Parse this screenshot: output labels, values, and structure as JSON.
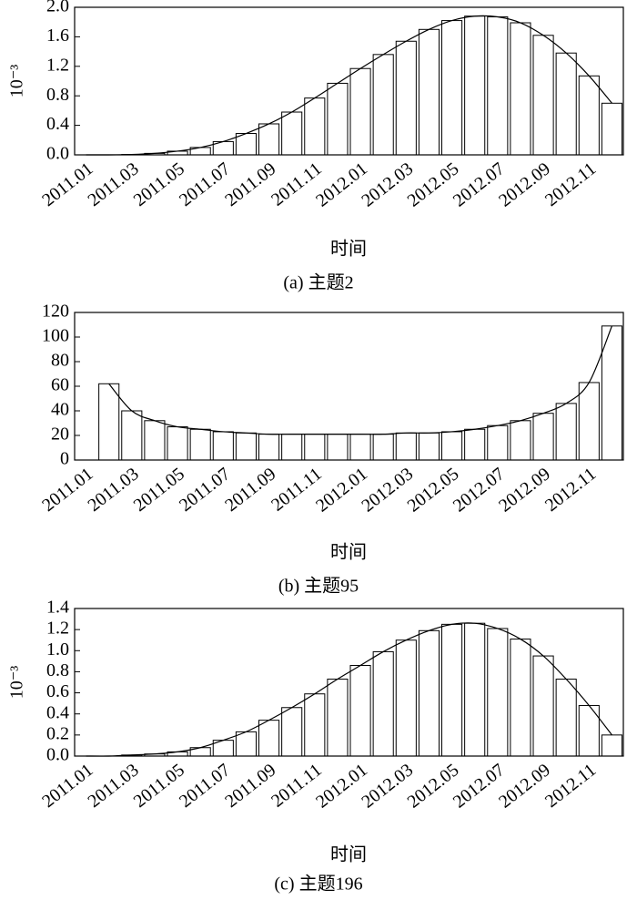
{
  "chart_data": [
    {
      "type": "bar",
      "ylabel": "10⁻³",
      "xlabel": "时间",
      "caption": "(a) 主题2",
      "categories": [
        "2011.01",
        null,
        "2011.03",
        null,
        "2011.05",
        null,
        "2011.07",
        null,
        "2011.09",
        null,
        "2011.11",
        null,
        "2012.01",
        null,
        "2012.03",
        null,
        "2012.05",
        null,
        "2012.07",
        null,
        "2012.09",
        null,
        "2012.11",
        null
      ],
      "values": [
        0,
        0,
        0.005,
        0.02,
        0.05,
        0.1,
        0.18,
        0.29,
        0.42,
        0.58,
        0.77,
        0.97,
        1.17,
        1.36,
        1.54,
        1.7,
        1.82,
        1.88,
        1.87,
        1.79,
        1.62,
        1.38,
        1.07,
        0.7
      ],
      "color": "#ffffff",
      "ylim": [
        0,
        2.0
      ],
      "yticks": [
        {
          "value": 0,
          "label": "0.0"
        },
        0.4,
        0.8,
        1.2,
        1.6,
        {
          "value": 2,
          "label": "2.0"
        }
      ],
      "grid": false
    },
    {
      "type": "bar",
      "xlabel": "时间",
      "caption": "(b) 主题95",
      "categories": [
        "2011.01",
        null,
        "2011.03",
        null,
        "2011.05",
        null,
        "2011.07",
        null,
        "2011.09",
        null,
        "2011.11",
        null,
        "2012.01",
        null,
        "2012.03",
        null,
        "2012.05",
        null,
        "2012.07",
        null,
        "2012.09",
        null,
        "2012.11",
        null
      ],
      "values": [
        null,
        62,
        40,
        32,
        27,
        25,
        23,
        22,
        21,
        21,
        21,
        21,
        21,
        21,
        22,
        22,
        23,
        25,
        28,
        32,
        38,
        46,
        63,
        109
      ],
      "color": "#ffffff",
      "ylim": [
        0,
        120
      ],
      "yticks": [
        0,
        20,
        40,
        60,
        80,
        100,
        120
      ],
      "grid": false
    },
    {
      "type": "bar",
      "ylabel": "10⁻³",
      "xlabel": "时间",
      "caption": "(c) 主题196",
      "categories": [
        "2011.01",
        null,
        "2011.03",
        null,
        "2011.05",
        null,
        "2011.07",
        null,
        "2011.09",
        null,
        "2011.11",
        null,
        "2012.01",
        null,
        "2012.03",
        null,
        "2012.05",
        null,
        "2012.07",
        null,
        "2012.09",
        null,
        "2012.11",
        null
      ],
      "values": [
        0,
        0,
        0.01,
        0.02,
        0.04,
        0.08,
        0.15,
        0.23,
        0.34,
        0.46,
        0.59,
        0.73,
        0.86,
        0.99,
        1.1,
        1.19,
        1.25,
        1.26,
        1.21,
        1.11,
        0.95,
        0.73,
        0.48,
        0.2
      ],
      "color": "#ffffff",
      "ylim": [
        0,
        1.4
      ],
      "yticks": [
        {
          "value": 0,
          "label": "0.0"
        },
        0.2,
        0.4,
        0.6,
        0.8,
        {
          "value": 1,
          "label": "1.0"
        },
        1.2,
        1.4
      ],
      "grid": false
    }
  ]
}
